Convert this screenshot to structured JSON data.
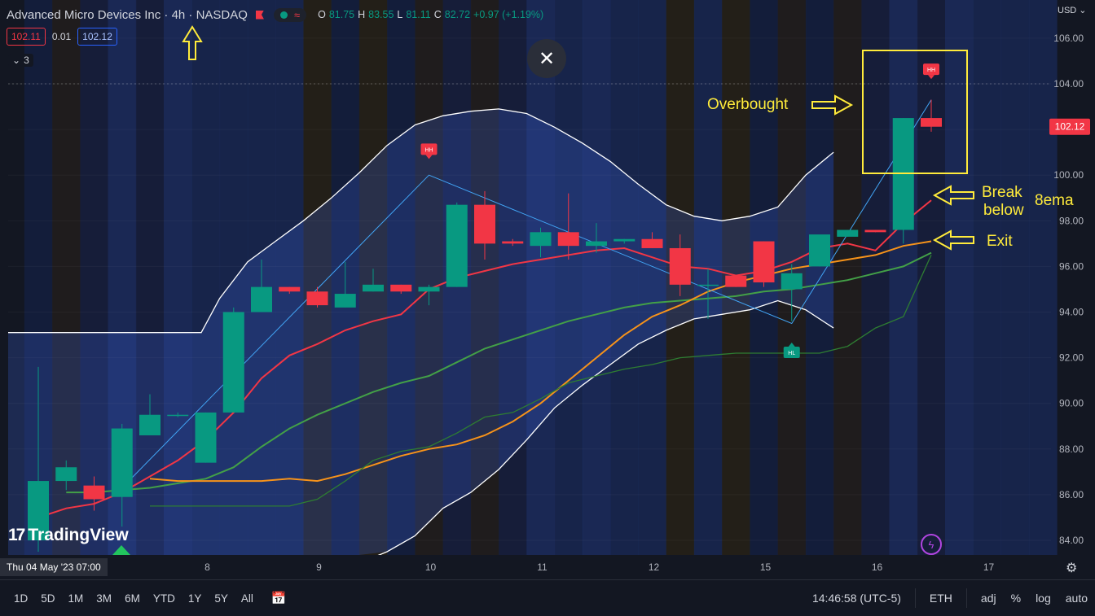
{
  "header": {
    "title": "Advanced Micro Devices Inc · 4h · NASDAQ",
    "open_label": "O",
    "open": "81.75",
    "high_label": "H",
    "high": "83.55",
    "low_label": "L",
    "low": "81.11",
    "close_label": "C",
    "close": "82.72",
    "change": "+0.97 (+1.19%)"
  },
  "quote": {
    "bid": "102.11",
    "spread": "0.01",
    "ask": "102.12"
  },
  "indicators_toggle": {
    "count": "3"
  },
  "currency": "USD",
  "current_price": "102.12",
  "brand": "TradingView",
  "crosshair_date": "Thu 04 May '23   07:00",
  "toolbar": {
    "timeframes": [
      "1D",
      "5D",
      "1M",
      "3M",
      "6M",
      "YTD",
      "1Y",
      "5Y",
      "All"
    ],
    "clock": "14:46:58 (UTC-5)",
    "session": "ETH",
    "adj": "adj",
    "percent": "%",
    "log": "log",
    "auto": "auto"
  },
  "annotations": {
    "overbought": "Overbought",
    "break": "Break",
    "below": "below",
    "ema": "8ema",
    "exit": "Exit"
  },
  "colors": {
    "up": "#089981",
    "down": "#f23645",
    "background": "#131722",
    "annotation": "#ffeb3b"
  },
  "icons": [
    "flag-icon",
    "status-dot-icon",
    "wave-icon",
    "chevron-down-icon",
    "close-icon",
    "calendar-icon",
    "gear-icon",
    "bolt-icon"
  ],
  "chart_data": {
    "type": "candlestick",
    "title": "Advanced Micro Devices Inc · 4h · NASDAQ",
    "ylim": [
      83.5,
      107
    ],
    "y_ticks": [
      "84.00",
      "86.00",
      "88.00",
      "90.00",
      "92.00",
      "94.00",
      "96.00",
      "98.00",
      "100.00",
      "102.00",
      "104.00",
      "106.00"
    ],
    "x_tick_labels": [
      "8",
      "9",
      "10",
      "11",
      "12",
      "15",
      "16",
      "17"
    ],
    "x_tick_bar_index": [
      6,
      10,
      14,
      18,
      22,
      26,
      30,
      34
    ],
    "candles": [
      {
        "o": 84.0,
        "h": 91.6,
        "l": 83.5,
        "c": 86.6
      },
      {
        "o": 86.6,
        "h": 87.5,
        "l": 86.2,
        "c": 87.2
      },
      {
        "o": 86.4,
        "h": 86.8,
        "l": 85.3,
        "c": 85.8
      },
      {
        "o": 85.9,
        "h": 89.1,
        "l": 84.6,
        "c": 88.9
      },
      {
        "o": 88.6,
        "h": 90.4,
        "l": 88.6,
        "c": 89.5
      },
      {
        "o": 89.5,
        "h": 89.6,
        "l": 89.4,
        "c": 89.5
      },
      {
        "o": 87.4,
        "h": 89.6,
        "l": 87.4,
        "c": 89.6
      },
      {
        "o": 89.6,
        "h": 94.2,
        "l": 89.6,
        "c": 94.0
      },
      {
        "o": 94.0,
        "h": 96.3,
        "l": 94.0,
        "c": 95.1
      },
      {
        "o": 95.1,
        "h": 95.1,
        "l": 94.8,
        "c": 94.9
      },
      {
        "o": 94.9,
        "h": 95.1,
        "l": 94.2,
        "c": 94.3
      },
      {
        "o": 94.2,
        "h": 96.2,
        "l": 94.2,
        "c": 94.8
      },
      {
        "o": 94.9,
        "h": 95.9,
        "l": 94.9,
        "c": 95.2
      },
      {
        "o": 95.2,
        "h": 95.2,
        "l": 94.8,
        "c": 94.9
      },
      {
        "o": 94.9,
        "h": 95.2,
        "l": 94.3,
        "c": 95.1
      },
      {
        "o": 95.1,
        "h": 98.8,
        "l": 95.1,
        "c": 98.7
      },
      {
        "o": 98.7,
        "h": 99.3,
        "l": 96.3,
        "c": 97.0
      },
      {
        "o": 97.1,
        "h": 97.2,
        "l": 96.9,
        "c": 97.0
      },
      {
        "o": 96.9,
        "h": 97.7,
        "l": 96.4,
        "c": 97.5
      },
      {
        "o": 97.5,
        "h": 99.2,
        "l": 96.3,
        "c": 96.9
      },
      {
        "o": 96.9,
        "h": 97.9,
        "l": 96.6,
        "c": 97.1
      },
      {
        "o": 97.1,
        "h": 97.2,
        "l": 97.0,
        "c": 97.2
      },
      {
        "o": 97.2,
        "h": 97.5,
        "l": 96.8,
        "c": 96.8
      },
      {
        "o": 96.8,
        "h": 97.4,
        "l": 94.7,
        "c": 95.2
      },
      {
        "o": 95.2,
        "h": 95.9,
        "l": 93.7,
        "c": 95.2
      },
      {
        "o": 95.6,
        "h": 95.6,
        "l": 95.1,
        "c": 95.1
      },
      {
        "o": 97.1,
        "h": 97.1,
        "l": 95.1,
        "c": 95.3
      },
      {
        "o": 95.0,
        "h": 96.1,
        "l": 93.6,
        "c": 95.7
      },
      {
        "o": 96.0,
        "h": 97.3,
        "l": 96.0,
        "c": 97.4
      },
      {
        "o": 97.3,
        "h": 97.6,
        "l": 97.3,
        "c": 97.6
      },
      {
        "o": 97.6,
        "h": 97.6,
        "l": 97.5,
        "c": 97.5
      },
      {
        "o": 97.6,
        "h": 102.5,
        "l": 97.0,
        "c": 102.5
      },
      {
        "o": 102.5,
        "h": 103.3,
        "l": 101.9,
        "c": 102.12
      }
    ],
    "series": [
      {
        "name": "",
        "color": "#f23645",
        "values": [
          85.0,
          85.4,
          85.6,
          86.1,
          86.8,
          87.5,
          88.4,
          89.6,
          91.1,
          92.1,
          92.6,
          93.2,
          93.6,
          93.9,
          95.0,
          95.5,
          95.8,
          96.1,
          96.3,
          96.5,
          96.7,
          96.8,
          96.4,
          96.0,
          95.9,
          95.6,
          95.8,
          96.2,
          96.8,
          97.0,
          96.7,
          97.9,
          98.9
        ]
      },
      {
        "name": "",
        "color": "#43a047",
        "values": [
          86.1,
          86.1,
          86.2,
          86.3,
          86.5,
          86.7,
          87.2,
          88.1,
          88.9,
          89.5,
          90.0,
          90.5,
          90.9,
          91.2,
          91.8,
          92.4,
          92.8,
          93.2,
          93.6,
          93.9,
          94.2,
          94.4,
          94.5,
          94.6,
          94.7,
          94.9,
          95.0,
          95.2,
          95.4,
          95.7,
          96.0,
          96.6
        ]
      },
      {
        "name": "",
        "color": "#f7931a",
        "values": [
          86.7,
          86.6,
          86.6,
          86.6,
          86.6,
          86.7,
          86.6,
          86.9,
          87.3,
          87.7,
          88.0,
          88.2,
          88.6,
          89.2,
          90.0,
          91.0,
          92.0,
          93.0,
          93.8,
          94.3,
          94.9,
          95.3,
          95.6,
          95.9,
          96.1,
          96.3,
          96.5,
          96.9,
          97.1
        ]
      },
      {
        "name": "",
        "color": "#2e7d32",
        "values": [
          85.5,
          85.5,
          85.5,
          85.5,
          85.5,
          85.5,
          85.8,
          86.6,
          87.5,
          87.9,
          88.1,
          88.7,
          89.4,
          89.6,
          90.2,
          90.9,
          91.2,
          91.5,
          91.7,
          92.0,
          92.1,
          92.2,
          92.2,
          92.2,
          92.2,
          92.5,
          93.3,
          93.8,
          96.5
        ]
      }
    ],
    "bb_upper": [
      93.1,
      93.1,
      93.1,
      93.1,
      93.1,
      93.1,
      93.1,
      94.6,
      96.2,
      97.1,
      98.0,
      99.0,
      100.1,
      101.3,
      102.2,
      102.6,
      102.8,
      102.9,
      102.7,
      102.1,
      101.4,
      100.6,
      99.6,
      98.7,
      98.2,
      98.0,
      98.2,
      98.6,
      100.0,
      101.0
    ],
    "bb_lower": [
      83.0,
      83.0,
      83.0,
      83.0,
      83.0,
      83.0,
      83.0,
      82.8,
      82.7,
      82.5,
      82.5,
      82.6,
      83.0,
      83.5,
      84.2,
      85.4,
      86.1,
      87.1,
      88.4,
      89.8,
      90.8,
      91.7,
      92.6,
      93.2,
      93.7,
      93.9,
      94.1,
      94.5,
      94.1,
      93.3
    ],
    "zigzag": [
      {
        "bar": 3,
        "y": 86.3
      },
      {
        "bar": 14,
        "y": 100.0
      },
      {
        "bar": 27,
        "y": 93.5
      },
      {
        "bar": 32,
        "y": 103.3
      }
    ],
    "markers": [
      {
        "label": "HH",
        "bar": 14,
        "y": 101.1,
        "type": "high"
      },
      {
        "label": "HL",
        "bar": 27,
        "y": 92.2,
        "type": "low"
      },
      {
        "label": "HH",
        "bar": 32,
        "y": 104.6,
        "type": "high"
      }
    ],
    "annotations": [
      "Overbought",
      "Break below 8ema",
      "Exit"
    ]
  }
}
